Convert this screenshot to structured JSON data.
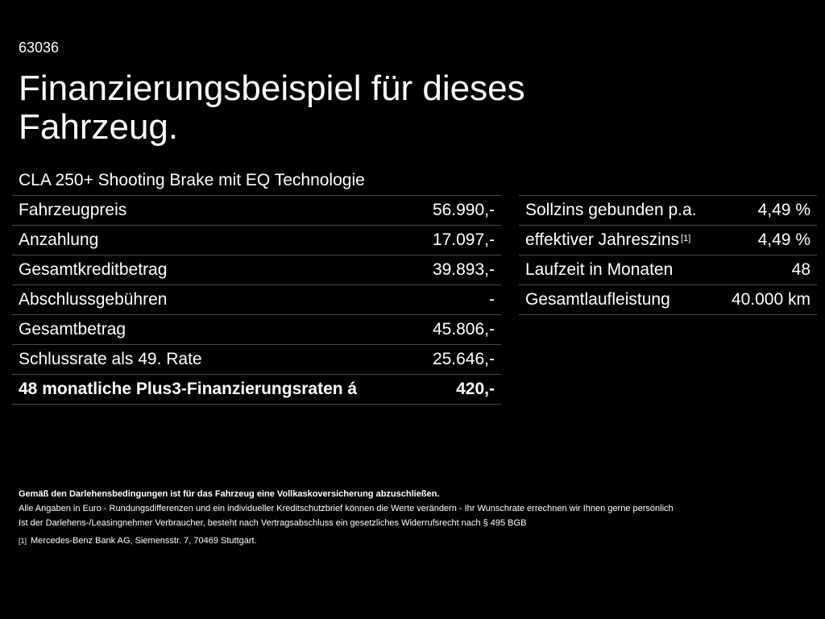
{
  "ref_number": "63036",
  "headline_line1": "Finanzierungsbeispiel für dieses",
  "headline_line2": "Fahrzeug.",
  "vehicle_name": "CLA 250+ Shooting Brake mit EQ Technologie",
  "left_table": [
    {
      "label": "Fahrzeugpreis",
      "value": "56.990,-"
    },
    {
      "label": "Anzahlung",
      "value": "17.097,-"
    },
    {
      "label": "Gesamtkreditbetrag",
      "value": "39.893,-"
    },
    {
      "label": "Abschlussgebühren",
      "value": "-"
    },
    {
      "label": "Gesamtbetrag",
      "value": "45.806,-"
    },
    {
      "label": "Schlussrate als 49. Rate",
      "value": "25.646,-"
    },
    {
      "label": "48 monatliche Plus3-Finanzierungsraten á",
      "value": "420,-"
    }
  ],
  "right_table": [
    {
      "label": "Sollzins gebunden p.a.",
      "value": "4,49 %"
    },
    {
      "label": "effektiver Jahreszins",
      "footnote": "[1]",
      "value": "4,49 %"
    },
    {
      "label": "Laufzeit in Monaten",
      "value": "48"
    },
    {
      "label": "Gesamtlaufleistung",
      "value": "40.000 km"
    }
  ],
  "footnotes": {
    "insurance_note": "Gemäß den Darlehensbedingungen ist für das Fahrzeug eine Vollkaskoversicherung abzuschließen.",
    "euro_note": "Alle Angaben in Euro - Rundungsdifferenzen und ein individueller Kreditschutzbrief können die Werte verändern - Ihr Wunschrate errechnen wir Ihnen gerne persönlich",
    "consumer_note": "Ist der Darlehens-/Leasingnehmer Verbraucher, besteht nach Vertragsabschluss ein gesetzliches Widerrufsrecht nach § 495 BGB",
    "ref_mark": "[1]",
    "ref_text": "Mercedes-Benz Bank AG, Siemensstr. 7, 70469 Stuttgart."
  }
}
